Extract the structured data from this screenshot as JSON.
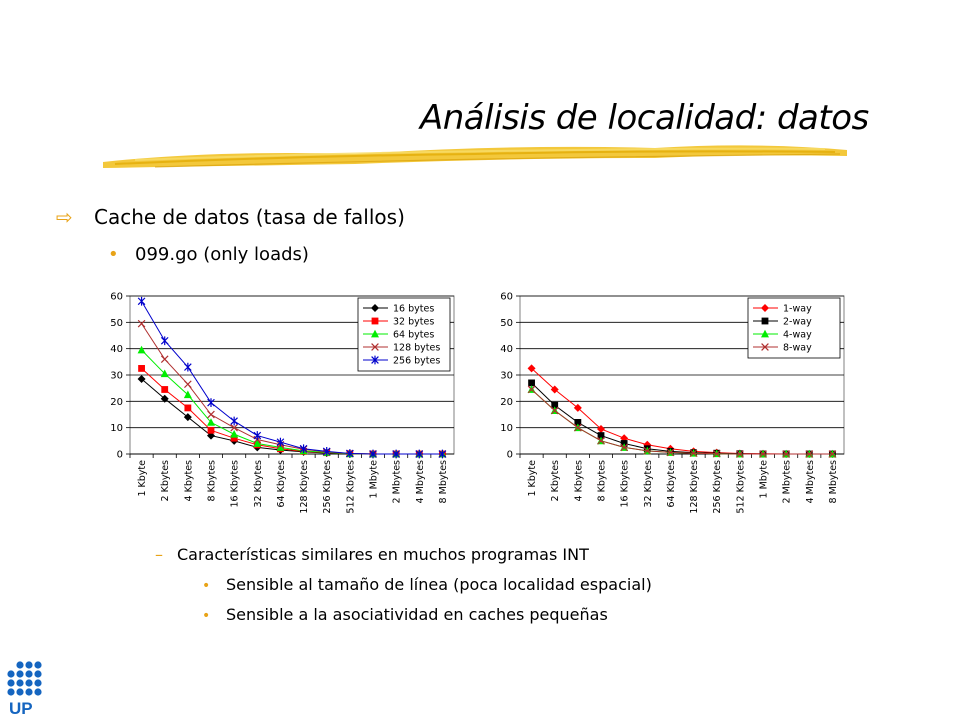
{
  "slide": {
    "title": "Análisis de localidad: datos",
    "bullet1": "Cache de datos (tasa de fallos)",
    "bullet2": "099.go (only loads)",
    "sub_dash": "Características similares en muchos programas INT",
    "sub_items": [
      "Sensible al tamaño de línea (poca localidad espacial)",
      "Sensible a la asociatividad en caches pequeñas"
    ],
    "logo_text": "UP"
  },
  "colors": {
    "accent": "#e8a317",
    "logo": "#1565c0",
    "brush": "#f2c530"
  },
  "chart_data": [
    {
      "type": "line",
      "categories": [
        "1 Kbyte",
        "2 Kbytes",
        "4 Kbytes",
        "8 Kbytes",
        "16 Kbytes",
        "32 Kbytes",
        "64 Kbytes",
        "128 Kbytes",
        "256 Kbytes",
        "512 Kbytes",
        "1 Mbyte",
        "2 Mbytes",
        "4 Mbytes",
        "8 Mbytes"
      ],
      "ylim": [
        0,
        60
      ],
      "yticks": [
        "0",
        "10",
        "20",
        "30",
        "40",
        "50",
        "60"
      ],
      "grid": true,
      "legend_position": "top-right",
      "series": [
        {
          "name": "16 bytes",
          "color": "#000000",
          "marker": "diamond",
          "values": [
            28.5,
            21,
            14,
            7,
            5,
            2.5,
            1.5,
            0.8,
            0.4,
            0.1,
            0,
            0,
            0,
            0
          ]
        },
        {
          "name": "32 bytes",
          "color": "#ff0000",
          "marker": "square",
          "values": [
            32.5,
            24.5,
            17.5,
            9,
            6,
            3.5,
            2,
            1,
            0.5,
            0.1,
            0,
            0,
            0,
            0
          ]
        },
        {
          "name": "64 bytes",
          "color": "#00ee00",
          "marker": "triangle",
          "values": [
            39.5,
            30.5,
            22.5,
            12,
            7.5,
            4,
            2.5,
            1.2,
            0.6,
            0.1,
            0,
            0,
            0,
            0
          ]
        },
        {
          "name": "128 bytes",
          "color": "#b03030",
          "marker": "x",
          "values": [
            49.5,
            36,
            26.5,
            15,
            10,
            5.5,
            3.5,
            1.8,
            0.8,
            0.2,
            0,
            0,
            0,
            0
          ]
        },
        {
          "name": "256 bytes",
          "color": "#0000cc",
          "marker": "star",
          "values": [
            58,
            43,
            33,
            19.5,
            12.5,
            7,
            4.5,
            2,
            1,
            0.2,
            0,
            0,
            0,
            0
          ]
        }
      ]
    },
    {
      "type": "line",
      "categories": [
        "1 Kbyte",
        "2 Kbytes",
        "4 Kbytes",
        "8 Kbytes",
        "16 Kbytes",
        "32 Kbytes",
        "64 Kbytes",
        "128 Kbytes",
        "256 Kbytes",
        "512 Kbytes",
        "1 Mbyte",
        "2 Mbytes",
        "4 Mbytes",
        "8 Mbytes"
      ],
      "ylim": [
        0,
        60
      ],
      "yticks": [
        "0",
        "10",
        "20",
        "30",
        "40",
        "50",
        "60"
      ],
      "grid": true,
      "legend_position": "top-right",
      "series": [
        {
          "name": "1-way",
          "color": "#ff0000",
          "marker": "diamond",
          "values": [
            32.5,
            24.5,
            17.5,
            9.5,
            6,
            3.5,
            2,
            1,
            0.5,
            0.2,
            0.1,
            0,
            0,
            0
          ]
        },
        {
          "name": "2-way",
          "color": "#000000",
          "marker": "square",
          "values": [
            27,
            18.5,
            12,
            7,
            4,
            2,
            1,
            0.5,
            0.3,
            0.1,
            0,
            0,
            0,
            0
          ]
        },
        {
          "name": "4-way",
          "color": "#00ee00",
          "marker": "triangle",
          "values": [
            24.5,
            16.5,
            10,
            5,
            2.5,
            1.2,
            0.6,
            0.3,
            0.1,
            0,
            0,
            0,
            0,
            0
          ]
        },
        {
          "name": "8-way",
          "color": "#b03030",
          "marker": "x",
          "values": [
            24.5,
            16.5,
            10,
            5,
            2.5,
            1.2,
            0.6,
            0.3,
            0.1,
            0,
            0,
            0,
            0,
            0
          ]
        }
      ]
    }
  ]
}
